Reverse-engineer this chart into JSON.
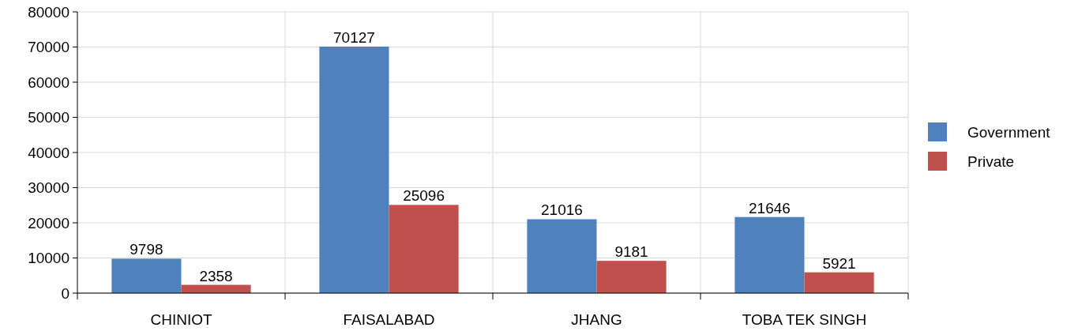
{
  "chart_data": {
    "type": "bar",
    "categories": [
      "CHINIOT",
      "FAISALABAD",
      "JHANG",
      "TOBA TEK SINGH"
    ],
    "series": [
      {
        "name": "Government",
        "color": "#4f81bd",
        "values": [
          9798,
          70127,
          21016,
          21646
        ]
      },
      {
        "name": "Private",
        "color": "#c0504d",
        "values": [
          2358,
          25096,
          9181,
          5921
        ]
      }
    ],
    "ylim": [
      0,
      80000
    ],
    "yticks": [
      0,
      10000,
      20000,
      30000,
      40000,
      50000,
      60000,
      70000,
      80000
    ],
    "grid": true,
    "legend": "right",
    "data_labels": true
  }
}
